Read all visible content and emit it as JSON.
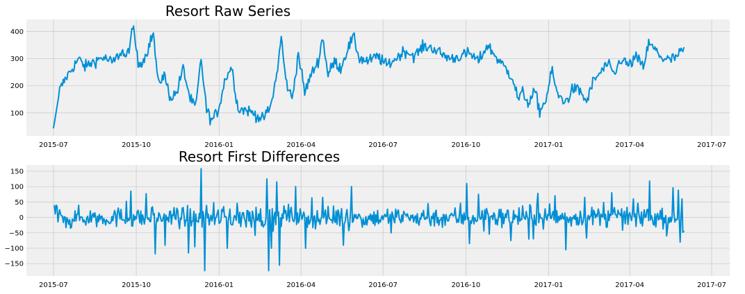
{
  "colors": {
    "line": "#008fd5",
    "plot_background": "#f0f0f0",
    "grid": "#cbcbcb",
    "figure_background": "#ffffff"
  },
  "chart_data": [
    {
      "type": "line",
      "title": "Resort Raw Series",
      "xlabel": "",
      "ylabel": "",
      "grid": true,
      "xlim": [
        "2015-06-01",
        "2017-07-21"
      ],
      "ylim": [
        15,
        445
      ],
      "x_ticks": [
        "2015-07",
        "2015-10",
        "2016-01",
        "2016-04",
        "2016-07",
        "2016-10",
        "2017-01",
        "2017-04",
        "2017-07"
      ],
      "y_ticks": [
        100,
        200,
        300,
        400
      ],
      "x_start": "2015-07-01",
      "x_end": "2017-05-31",
      "anchors": [
        [
          "2015-07-01",
          42
        ],
        [
          "2015-07-08",
          185
        ],
        [
          "2015-07-15",
          230
        ],
        [
          "2015-07-22",
          265
        ],
        [
          "2015-07-29",
          300
        ],
        [
          "2015-08-05",
          270
        ],
        [
          "2015-08-15",
          290
        ],
        [
          "2015-08-25",
          305
        ],
        [
          "2015-09-05",
          285
        ],
        [
          "2015-09-15",
          330
        ],
        [
          "2015-09-20",
          300
        ],
        [
          "2015-09-28",
          415
        ],
        [
          "2015-10-03",
          280
        ],
        [
          "2015-10-10",
          300
        ],
        [
          "2015-10-20",
          395
        ],
        [
          "2015-10-25",
          210
        ],
        [
          "2015-11-01",
          240
        ],
        [
          "2015-11-08",
          155
        ],
        [
          "2015-11-15",
          175
        ],
        [
          "2015-11-22",
          265
        ],
        [
          "2015-11-30",
          150
        ],
        [
          "2015-12-06",
          120
        ],
        [
          "2015-12-12",
          300
        ],
        [
          "2015-12-18",
          110
        ],
        [
          "2015-12-24",
          70
        ],
        [
          "2015-12-31",
          110
        ],
        [
          "2016-01-08",
          230
        ],
        [
          "2016-01-15",
          270
        ],
        [
          "2016-01-22",
          115
        ],
        [
          "2016-02-01",
          110
        ],
        [
          "2016-02-10",
          95
        ],
        [
          "2016-02-18",
          75
        ],
        [
          "2016-02-27",
          120
        ],
        [
          "2016-03-05",
          240
        ],
        [
          "2016-03-10",
          380
        ],
        [
          "2016-03-15",
          220
        ],
        [
          "2016-03-22",
          150
        ],
        [
          "2016-03-29",
          320
        ],
        [
          "2016-04-05",
          175
        ],
        [
          "2016-04-12",
          240
        ],
        [
          "2016-04-20",
          290
        ],
        [
          "2016-04-25",
          380
        ],
        [
          "2016-05-01",
          240
        ],
        [
          "2016-05-08",
          290
        ],
        [
          "2016-05-15",
          265
        ],
        [
          "2016-05-22",
          330
        ],
        [
          "2016-05-29",
          380
        ],
        [
          "2016-06-05",
          300
        ],
        [
          "2016-06-15",
          290
        ],
        [
          "2016-06-25",
          310
        ],
        [
          "2016-07-05",
          275
        ],
        [
          "2016-07-15",
          300
        ],
        [
          "2016-07-25",
          330
        ],
        [
          "2016-08-05",
          310
        ],
        [
          "2016-08-15",
          345
        ],
        [
          "2016-08-25",
          340
        ],
        [
          "2016-09-05",
          315
        ],
        [
          "2016-09-15",
          300
        ],
        [
          "2016-09-25",
          310
        ],
        [
          "2016-10-05",
          320
        ],
        [
          "2016-10-15",
          290
        ],
        [
          "2016-10-25",
          350
        ],
        [
          "2016-11-05",
          300
        ],
        [
          "2016-11-15",
          260
        ],
        [
          "2016-11-22",
          230
        ],
        [
          "2016-11-28",
          150
        ],
        [
          "2016-12-03",
          175
        ],
        [
          "2016-12-10",
          135
        ],
        [
          "2016-12-17",
          180
        ],
        [
          "2016-12-22",
          105
        ],
        [
          "2016-12-29",
          150
        ],
        [
          "2017-01-05",
          260
        ],
        [
          "2017-01-10",
          170
        ],
        [
          "2017-01-20",
          140
        ],
        [
          "2017-01-28",
          190
        ],
        [
          "2017-02-05",
          180
        ],
        [
          "2017-02-12",
          140
        ],
        [
          "2017-02-20",
          220
        ],
        [
          "2017-02-28",
          250
        ],
        [
          "2017-03-07",
          280
        ],
        [
          "2017-03-15",
          240
        ],
        [
          "2017-03-22",
          300
        ],
        [
          "2017-03-31",
          275
        ],
        [
          "2017-04-08",
          305
        ],
        [
          "2017-04-16",
          270
        ],
        [
          "2017-04-22",
          355
        ],
        [
          "2017-04-30",
          330
        ],
        [
          "2017-05-08",
          300
        ],
        [
          "2017-05-16",
          295
        ],
        [
          "2017-05-24",
          310
        ],
        [
          "2017-05-31",
          335
        ]
      ]
    },
    {
      "type": "line",
      "title": "Resort First Differences",
      "xlabel": "",
      "ylabel": "",
      "grid": true,
      "xlim": [
        "2015-06-01",
        "2017-07-21"
      ],
      "ylim": [
        -190,
        170
      ],
      "x_ticks": [
        "2015-07",
        "2015-10",
        "2016-01",
        "2016-04",
        "2016-07",
        "2016-10",
        "2017-01",
        "2017-04",
        "2017-07"
      ],
      "y_ticks": [
        -150,
        -100,
        -50,
        0,
        50,
        100,
        150
      ],
      "x_start": "2015-07-02",
      "x_end": "2017-05-31",
      "spikes": [
        [
          "2015-07-02",
          38
        ],
        [
          "2015-07-04",
          40
        ],
        [
          "2015-07-20",
          -35
        ],
        [
          "2015-09-20",
          52
        ],
        [
          "2015-09-25",
          85
        ],
        [
          "2015-10-22",
          -118
        ],
        [
          "2015-11-02",
          -90
        ],
        [
          "2015-11-28",
          -115
        ],
        [
          "2015-12-05",
          -95
        ],
        [
          "2015-12-12",
          158
        ],
        [
          "2015-12-16",
          -173
        ],
        [
          "2015-12-26",
          48
        ],
        [
          "2016-01-10",
          -100
        ],
        [
          "2016-02-23",
          125
        ],
        [
          "2016-02-25",
          -173
        ],
        [
          "2016-02-28",
          -100
        ],
        [
          "2016-03-05",
          115
        ],
        [
          "2016-03-08",
          -155
        ],
        [
          "2016-03-26",
          100
        ],
        [
          "2016-04-06",
          -100
        ],
        [
          "2016-04-25",
          65
        ],
        [
          "2016-05-18",
          -90
        ],
        [
          "2016-05-27",
          100
        ],
        [
          "2016-07-10",
          -50
        ],
        [
          "2016-08-20",
          45
        ],
        [
          "2016-10-02",
          110
        ],
        [
          "2016-10-05",
          -85
        ],
        [
          "2016-10-15",
          75
        ],
        [
          "2016-11-20",
          -75
        ],
        [
          "2016-12-10",
          -70
        ],
        [
          "2016-12-20",
          78
        ],
        [
          "2017-01-08",
          70
        ],
        [
          "2017-01-20",
          -105
        ],
        [
          "2017-02-10",
          65
        ],
        [
          "2017-03-12",
          80
        ],
        [
          "2017-04-05",
          60
        ],
        [
          "2017-04-23",
          118
        ],
        [
          "2017-05-12",
          -60
        ],
        [
          "2017-05-25",
          88
        ],
        [
          "2017-05-27",
          -80
        ],
        [
          "2017-05-29",
          60
        ],
        [
          "2017-05-31",
          -45
        ]
      ]
    }
  ]
}
